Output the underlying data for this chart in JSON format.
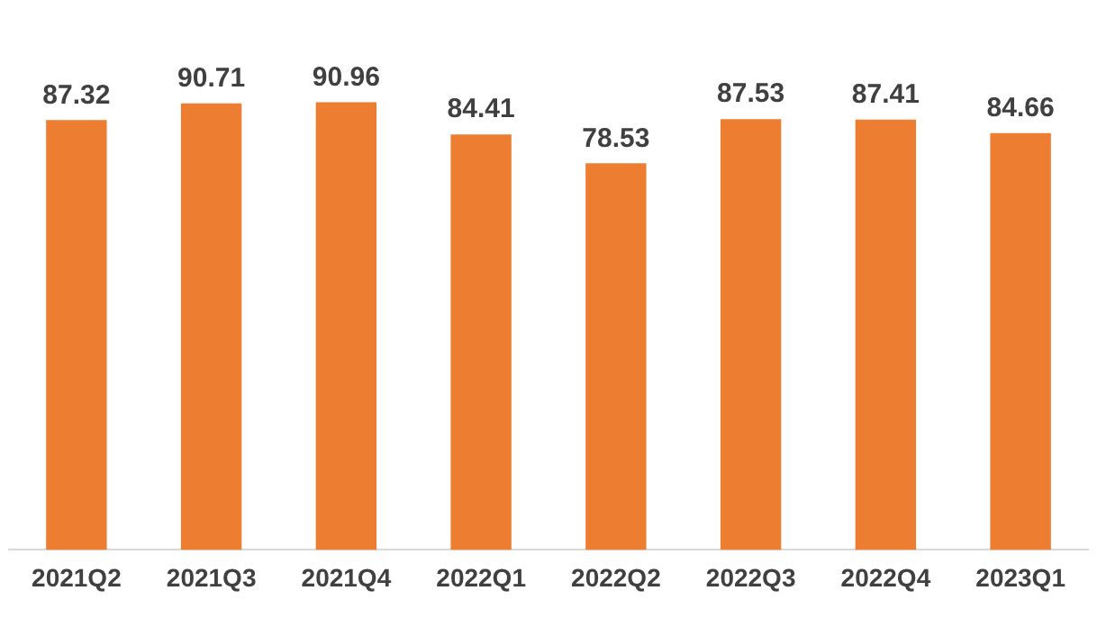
{
  "chart_data": {
    "type": "bar",
    "categories": [
      "2021Q2",
      "2021Q3",
      "2021Q4",
      "2022Q1",
      "2022Q2",
      "2022Q3",
      "2022Q4",
      "2023Q1"
    ],
    "values": [
      87.32,
      90.71,
      90.96,
      84.41,
      78.53,
      87.53,
      87.41,
      84.66
    ],
    "color": "#ed7d31",
    "tick_labels": "x",
    "grid": false,
    "legend": false,
    "data_labels": true
  }
}
